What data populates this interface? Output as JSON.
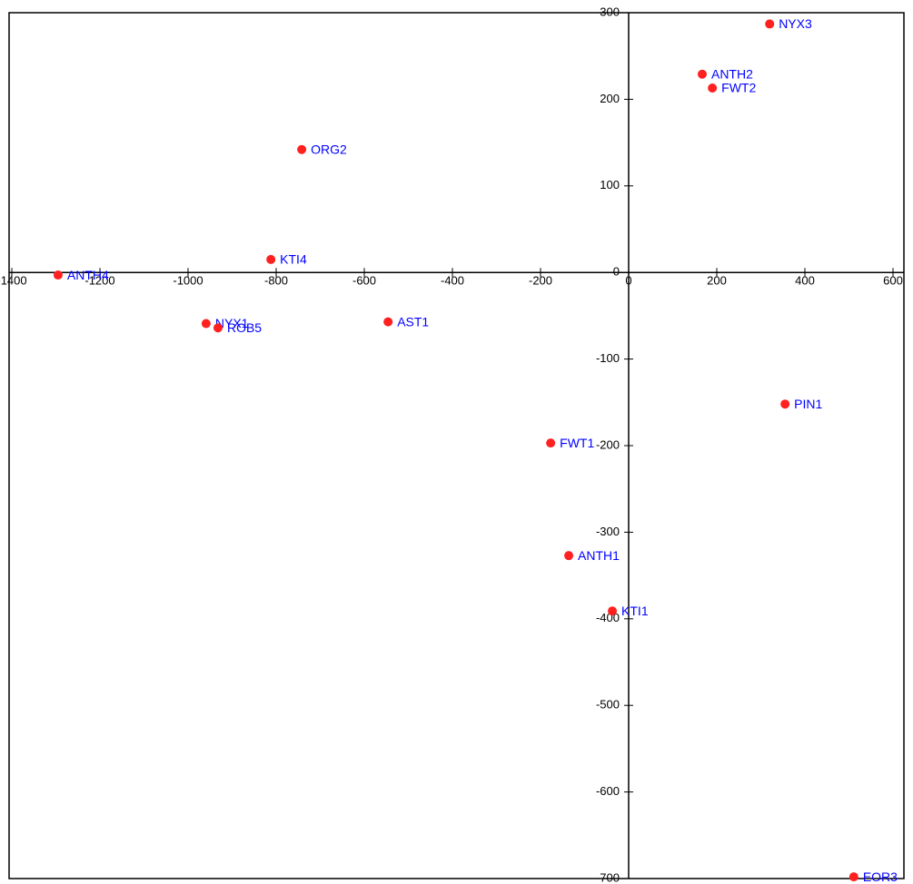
{
  "chart_data": {
    "type": "scatter",
    "labels": [
      "NYX3",
      "ANTH2",
      "FWT2",
      "ORG2",
      "KTI4",
      "ANTH4",
      "NYX1",
      "ROB5",
      "AST1",
      "PIN1",
      "FWT1",
      "ANTH1",
      "KTI1",
      "EOR3"
    ],
    "x": [
      320,
      167,
      190,
      -742,
      -812,
      -1295,
      -959,
      -932,
      -546,
      355,
      -177,
      -136,
      -37,
      511
    ],
    "values": [
      287,
      229,
      213,
      142,
      15,
      -3,
      -59,
      -64,
      -57,
      -152,
      -197,
      -327,
      -391,
      -698
    ],
    "color": "#ff2020",
    "label_color": "#0000ff",
    "xlim": [
      -1400,
      600
    ],
    "ylim": [
      -700,
      300
    ],
    "xticks": [
      -1400,
      -1200,
      -1000,
      -800,
      -600,
      -400,
      -200,
      0,
      200,
      400,
      600
    ],
    "yticks": [
      300,
      200,
      100,
      0,
      -100,
      -200,
      -300,
      -400,
      -500,
      -600,
      -700
    ]
  }
}
